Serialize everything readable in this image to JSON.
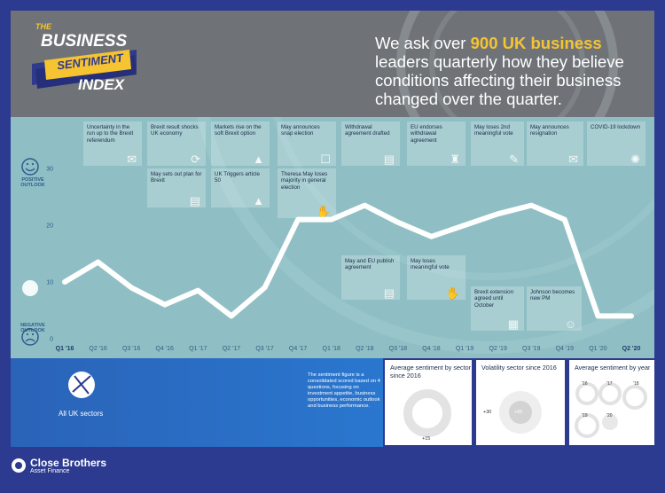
{
  "header": {
    "logo_the": "THE",
    "logo_business": "BUSINESS",
    "logo_sentiment": "SENTIMENT",
    "logo_index": "INDEX",
    "headline_pre": "We ask over ",
    "headline_highlight": "900 UK business",
    "headline_post": "leaders quarterly how they believe conditions affecting their business changed over the quarter.",
    "highlight_color": "#f6c431"
  },
  "y_side": {
    "positive": "POSITIVE OUTLOOK",
    "negative": "NEGATIVE OUTLOOK"
  },
  "annotations": [
    {
      "text": "Uncertainty in the run up to the Brexit referendum",
      "icon": "ballot-icon"
    },
    {
      "text": "Brexit result shocks UK economy",
      "icon": "arrows-circle-icon"
    },
    {
      "text": "Markets rise on the soft Brexit option",
      "icon": "road-icon"
    },
    {
      "text": "May announces snap election",
      "icon": "ballot-box-icon"
    },
    {
      "text": "Withdrawal agreement drafted",
      "icon": "documents-icon"
    },
    {
      "text": "EU endorses withdrawal agreement",
      "icon": "stamp-icon"
    },
    {
      "text": "May loses 2nd meaningful vote",
      "icon": "ballot-paper-icon"
    },
    {
      "text": "May announces resignation",
      "icon": "letter-icon"
    },
    {
      "text": "COVID-19 lockdown",
      "icon": "virus-icon"
    },
    {
      "text": "May sets out plan for Brexit",
      "icon": "document-icon"
    },
    {
      "text": "UK Triggers article 50",
      "icon": "road-icon"
    },
    {
      "text": "Theresa May loses majority in general election",
      "icon": "hand-ballot-icon"
    },
    {
      "text": "May and EU publish agreement",
      "icon": "document-icon"
    },
    {
      "text": "May loses meaningful vote",
      "icon": "hand-ballot-icon"
    },
    {
      "text": "Brexit extension agreed until October",
      "icon": "calendar-icon"
    },
    {
      "text": "Johnson becomes new PM",
      "icon": "person-icon"
    }
  ],
  "chart_data": {
    "type": "line",
    "categories": [
      "Q1 '16",
      "Q2 '16",
      "Q3 '16",
      "Q4 '16",
      "Q1 '17",
      "Q2 '17",
      "Q3 '17",
      "Q4 '17",
      "Q1 '18",
      "Q2 '18",
      "Q3 '18",
      "Q4 '18",
      "Q1 '19",
      "Q2 '19",
      "Q3 '19",
      "Q4 '19",
      "Q1 '20",
      "Q2 '20"
    ],
    "values": [
      10,
      13.5,
      9,
      6,
      8.5,
      4,
      9,
      21,
      21,
      23.5,
      20.5,
      18,
      20,
      22,
      23.5,
      21,
      4,
      4
    ],
    "yticks": [
      0,
      10,
      20,
      30
    ],
    "ylim": [
      0,
      34
    ],
    "line_color": "#ffffff",
    "panel_color": "#8fbfc4"
  },
  "bottom": {
    "sector_label": "All UK sectors",
    "description": "The sentiment figure is a consolidated scored based on 4 questions, focusing on investment appetite, business opportunities, economic outlook and business performance.",
    "card1_title": "Average sentiment by sector since 2016",
    "card1_value": "+15",
    "card2_title": "Volatility sector since 2016",
    "card2_left": "+30",
    "card2_center": "+65",
    "card3_title": "Average sentiment by year",
    "card3_years": [
      "'16",
      "'17",
      "'18",
      "'19",
      "'20"
    ]
  },
  "footer": {
    "brand": "Close Brothers",
    "sub": "Asset Finance"
  }
}
